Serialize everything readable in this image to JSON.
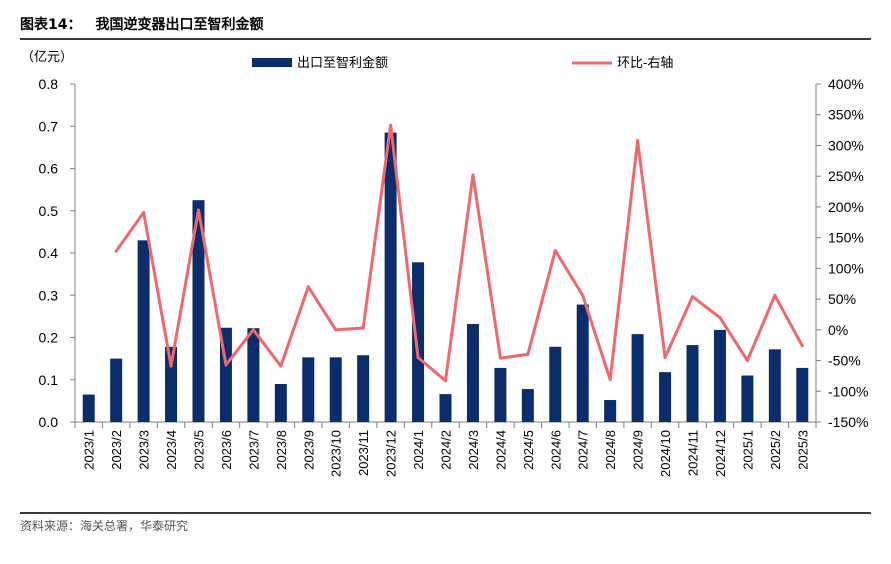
{
  "figure": {
    "label": "图表14：",
    "title": "我国逆变器出口至智利金额",
    "source": "资料来源：海关总署，华泰研究"
  },
  "colors": {
    "bar": "#0b2d6b",
    "line": "#f0686c",
    "axis": "#7f7f7f"
  },
  "chart_data": {
    "type": "bar",
    "y_unit_label": "（亿元）",
    "categories": [
      "2023/1",
      "2023/2",
      "2023/3",
      "2023/4",
      "2023/5",
      "2023/6",
      "2023/7",
      "2023/8",
      "2023/9",
      "2023/10",
      "2023/11",
      "2023/12",
      "2024/1",
      "2024/2",
      "2024/3",
      "2024/4",
      "2024/5",
      "2024/6",
      "2024/7",
      "2024/8",
      "2024/9",
      "2024/10",
      "2024/11",
      "2024/12",
      "2025/1",
      "2025/2",
      "2025/3"
    ],
    "series": [
      {
        "name": "出口至智利金额",
        "type": "bar",
        "axis": "left",
        "values": [
          0.065,
          0.15,
          0.43,
          0.178,
          0.525,
          0.223,
          0.222,
          0.09,
          0.153,
          0.153,
          0.158,
          0.685,
          0.378,
          0.066,
          0.232,
          0.128,
          0.078,
          0.178,
          0.278,
          0.052,
          0.208,
          0.118,
          0.182,
          0.218,
          0.11,
          0.172,
          0.128
        ]
      },
      {
        "name": "环比-右轴",
        "type": "line",
        "axis": "right",
        "values": [
          null,
          128,
          191,
          -59,
          195,
          -57,
          0,
          -59,
          70,
          0,
          3,
          333,
          -45,
          -83,
          252,
          -46,
          -40,
          129,
          56,
          -81,
          308,
          -45,
          54,
          20,
          -50,
          56,
          -26
        ]
      }
    ],
    "y_left": {
      "min": 0,
      "max": 0.8,
      "ticks": [
        "0.0",
        "0.1",
        "0.2",
        "0.3",
        "0.4",
        "0.5",
        "0.6",
        "0.7",
        "0.8"
      ]
    },
    "y_right": {
      "min": -150,
      "max": 400,
      "ticks": [
        "-150%",
        "-100%",
        "-50%",
        "0%",
        "50%",
        "100%",
        "150%",
        "200%",
        "250%",
        "300%",
        "350%",
        "400%"
      ]
    },
    "legend_position": "top",
    "grid": false
  }
}
